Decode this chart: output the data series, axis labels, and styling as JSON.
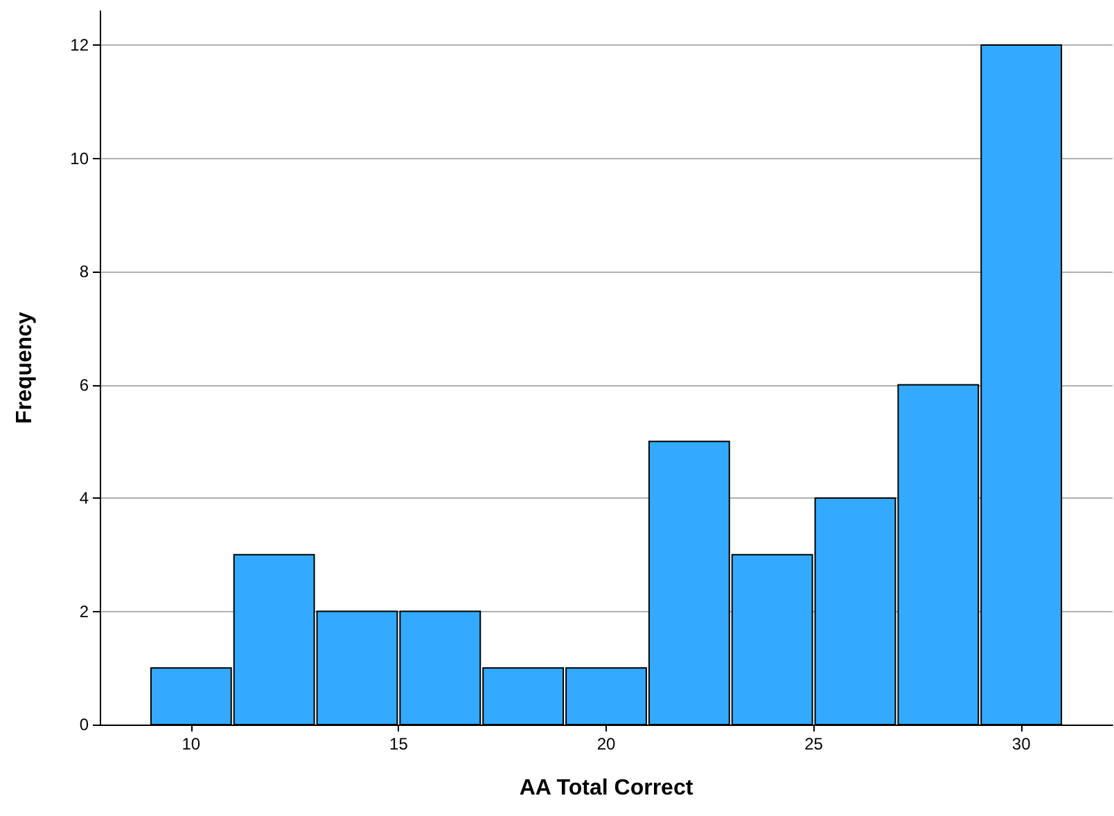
{
  "chart_data": {
    "type": "histogram",
    "xlabel": "AA Total Correct",
    "ylabel": "Frequency",
    "bins": [
      9,
      11,
      13,
      15,
      17,
      19,
      21,
      23,
      25,
      27,
      29,
      31
    ],
    "values": [
      1,
      3,
      2,
      2,
      1,
      1,
      5,
      3,
      4,
      6,
      12
    ],
    "color": "#33aaff",
    "xlim": [
      7.8,
      32.2
    ],
    "xticks": [
      10,
      15,
      20,
      25,
      30
    ],
    "ylim": [
      0,
      12.6
    ],
    "yticks": [
      0,
      2,
      4,
      6,
      8,
      10,
      12
    ],
    "grid": "y"
  }
}
